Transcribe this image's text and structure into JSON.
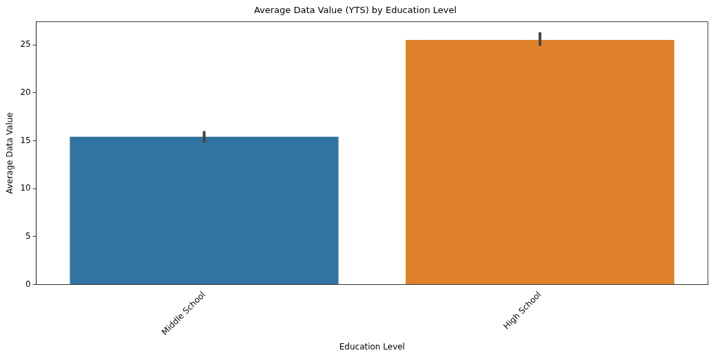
{
  "chart_data": {
    "type": "bar",
    "title": "Average Data Value (YTS) by Education Level",
    "xlabel": "Education Level",
    "ylabel": "Average Data Value",
    "categories": [
      "Middle School",
      "High School"
    ],
    "values": [
      15.4,
      25.5
    ],
    "colors": [
      "#3274a1",
      "#e1812c"
    ],
    "errors": [
      [
        14.8,
        16.0
      ],
      [
        24.9,
        26.3
      ]
    ],
    "ylim": [
      0,
      27.4
    ],
    "yticks": [
      0,
      5,
      10,
      15,
      20,
      25
    ],
    "grid": false,
    "legend": false
  }
}
